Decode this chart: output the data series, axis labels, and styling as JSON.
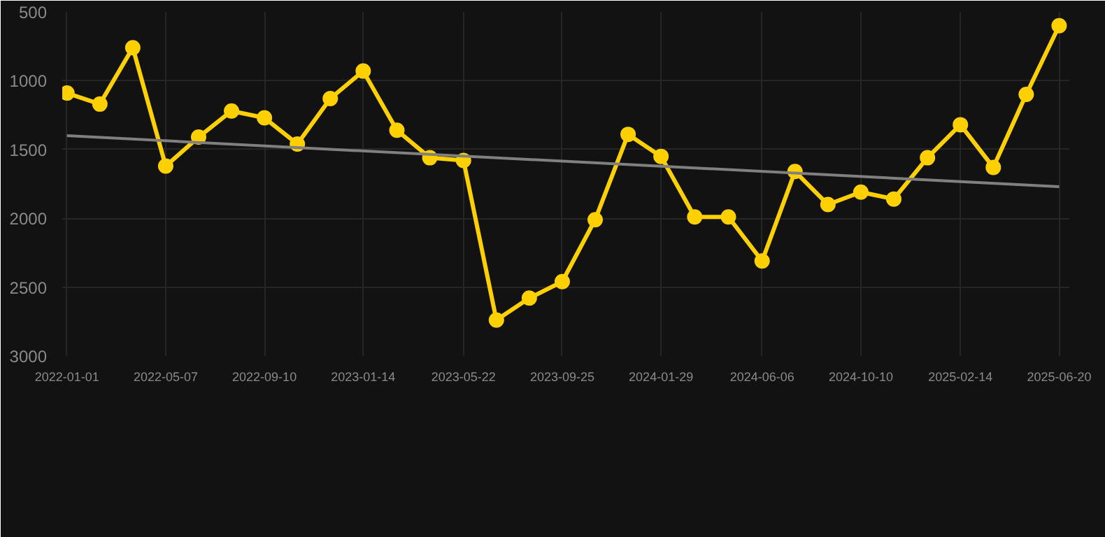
{
  "chart_data": {
    "type": "line",
    "x": [
      "2022-01-01",
      "2022-02-12",
      "2022-03-26",
      "2022-05-07",
      "2022-06-18",
      "2022-07-30",
      "2022-09-10",
      "2022-10-22",
      "2022-12-03",
      "2023-01-14",
      "2023-02-26",
      "2023-04-09",
      "2023-05-22",
      "2023-07-03",
      "2023-08-14",
      "2023-09-25",
      "2023-11-06",
      "2023-12-18",
      "2024-01-29",
      "2024-03-12",
      "2024-04-24",
      "2024-06-06",
      "2024-07-18",
      "2024-08-29",
      "2024-10-10",
      "2024-11-21",
      "2025-01-03",
      "2025-02-14",
      "2025-03-28",
      "2025-05-09",
      "2025-06-20"
    ],
    "series": [
      {
        "color": "#ffd000",
        "values": [
          1090,
          1170,
          760,
          1620,
          1410,
          1220,
          1270,
          1460,
          1130,
          930,
          1360,
          1560,
          1580,
          2740,
          2580,
          2460,
          2010,
          1390,
          1550,
          1990,
          1990,
          2310,
          1660,
          1900,
          1810,
          1860,
          1560,
          1320,
          1630,
          1100,
          600
        ]
      },
      {
        "type": "line",
        "marker": "none",
        "color": "#808080",
        "x": [
          "2022-01-01",
          "2025-06-20"
        ],
        "values": [
          1400,
          1770
        ]
      }
    ],
    "marker": "circle",
    "line_style": "solid",
    "ylim": [
      3000,
      500
    ],
    "yticks": [
      500,
      1000,
      1500,
      2000,
      2500,
      3000
    ],
    "xlim": [
      "2021-12-26",
      "2025-07-03"
    ],
    "xticks": [
      "2022-01-01",
      "2022-05-07",
      "2022-09-10",
      "2023-01-14",
      "2023-05-22",
      "2023-09-25",
      "2024-01-29",
      "2024-06-06",
      "2024-10-10",
      "2025-02-14",
      "2025-06-20"
    ],
    "grid": true
  }
}
